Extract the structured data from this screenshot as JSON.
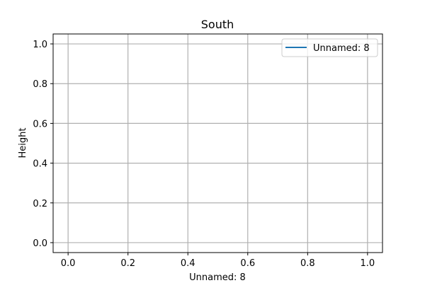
{
  "chart_data": {
    "type": "line",
    "title": "South",
    "xlabel": "Unnamed: 8",
    "ylabel": "Height",
    "xlim": [
      -0.05,
      1.05
    ],
    "ylim": [
      -0.05,
      1.05
    ],
    "xticks": [
      0.0,
      0.2,
      0.4,
      0.6,
      0.8,
      1.0
    ],
    "yticks": [
      0.0,
      0.2,
      0.4,
      0.6,
      0.8,
      1.0
    ],
    "xtick_labels": [
      "0.0",
      "0.2",
      "0.4",
      "0.6",
      "0.8",
      "1.0"
    ],
    "ytick_labels": [
      "0.0",
      "0.2",
      "0.4",
      "0.6",
      "0.8",
      "1.0"
    ],
    "grid": true,
    "legend": {
      "placement": "top-right"
    },
    "series": [
      {
        "name": "Unnamed: 8",
        "color": "#1f77b4",
        "x": [],
        "y": []
      }
    ]
  }
}
